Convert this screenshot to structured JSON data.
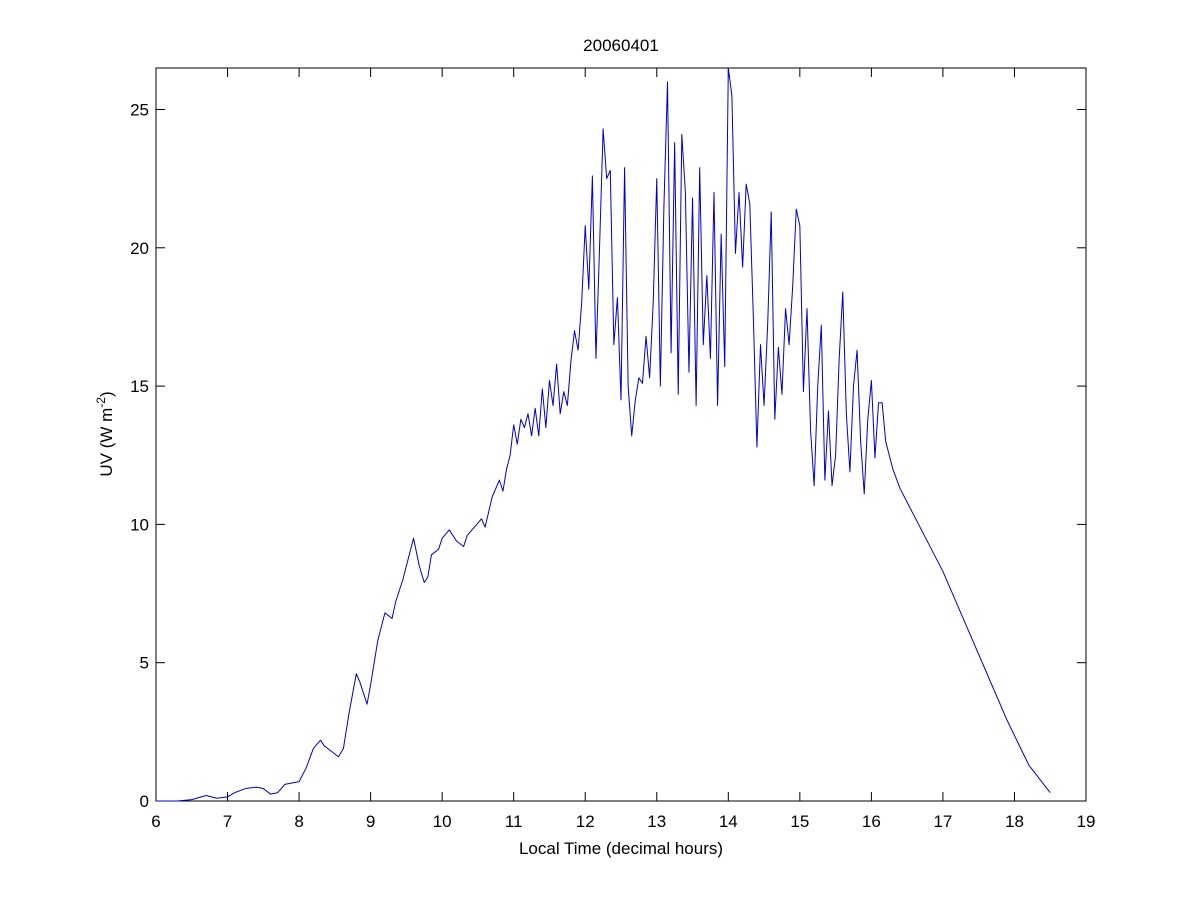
{
  "chart_data": {
    "type": "line",
    "title": "20060401",
    "xlabel": "Local Time (decimal hours)",
    "ylabel_main": "UV (W m",
    "ylabel_sup": "-2",
    "ylabel_close": ")",
    "xlim": [
      6,
      19
    ],
    "ylim": [
      0,
      26.5
    ],
    "xticks": [
      6,
      7,
      8,
      9,
      10,
      11,
      12,
      13,
      14,
      15,
      16,
      17,
      18,
      19
    ],
    "yticks": [
      0,
      5,
      10,
      15,
      20,
      25
    ],
    "grid": false,
    "line_color": "#0000CC",
    "series": [
      {
        "x": [
          6.0,
          6.3,
          6.5,
          6.7,
          6.85,
          7.0,
          7.1,
          7.25,
          7.4,
          7.5,
          7.6,
          7.7,
          7.8,
          7.9,
          8.0,
          8.1,
          8.2,
          8.3,
          8.35,
          8.45,
          8.55,
          8.62,
          8.7,
          8.8,
          8.85,
          8.95,
          9.0,
          9.1,
          9.2,
          9.3,
          9.35,
          9.45,
          9.55,
          9.6,
          9.68,
          9.75,
          9.8,
          9.85,
          9.95,
          10.0,
          10.1,
          10.2,
          10.3,
          10.35,
          10.45,
          10.55,
          10.6,
          10.7,
          10.8,
          10.85,
          10.9,
          10.95,
          11.0,
          11.05,
          11.1,
          11.15,
          11.2,
          11.25,
          11.3,
          11.35,
          11.4,
          11.45,
          11.5,
          11.55,
          11.6,
          11.65,
          11.7,
          11.75,
          11.8,
          11.85,
          11.9,
          11.95,
          12.0,
          12.05,
          12.1,
          12.15,
          12.2,
          12.25,
          12.3,
          12.35,
          12.4,
          12.45,
          12.5,
          12.55,
          12.6,
          12.65,
          12.7,
          12.75,
          12.8,
          12.85,
          12.9,
          12.95,
          13.0,
          13.05,
          13.1,
          13.15,
          13.2,
          13.25,
          13.3,
          13.35,
          13.4,
          13.45,
          13.5,
          13.55,
          13.6,
          13.65,
          13.7,
          13.75,
          13.8,
          13.85,
          13.9,
          13.95,
          14.0,
          14.05,
          14.1,
          14.15,
          14.2,
          14.25,
          14.3,
          14.35,
          14.4,
          14.45,
          14.5,
          14.55,
          14.6,
          14.65,
          14.7,
          14.75,
          14.8,
          14.85,
          14.9,
          14.95,
          15.0,
          15.05,
          15.1,
          15.15,
          15.2,
          15.25,
          15.3,
          15.35,
          15.4,
          15.45,
          15.5,
          15.55,
          15.6,
          15.65,
          15.7,
          15.75,
          15.8,
          15.85,
          15.9,
          15.95,
          16.0,
          16.05,
          16.1,
          16.15,
          16.2,
          16.3,
          16.4,
          16.5,
          16.7,
          17.0,
          17.3,
          17.6,
          17.9,
          18.2,
          18.5
        ],
        "y": [
          0.0,
          0.0,
          0.05,
          0.2,
          0.1,
          0.15,
          0.3,
          0.45,
          0.5,
          0.45,
          0.25,
          0.3,
          0.6,
          0.65,
          0.7,
          1.2,
          1.9,
          2.2,
          2.0,
          1.8,
          1.6,
          1.9,
          3.2,
          4.6,
          4.3,
          3.5,
          4.2,
          5.8,
          6.8,
          6.6,
          7.2,
          8.0,
          9.0,
          9.5,
          8.5,
          7.9,
          8.1,
          8.9,
          9.1,
          9.5,
          9.8,
          9.4,
          9.2,
          9.6,
          9.9,
          10.2,
          9.9,
          11.0,
          11.6,
          11.2,
          12.0,
          12.5,
          13.6,
          12.9,
          13.8,
          13.5,
          14.0,
          13.2,
          14.2,
          13.2,
          14.9,
          13.5,
          15.2,
          14.3,
          15.8,
          14.0,
          14.8,
          14.3,
          15.9,
          17.0,
          16.3,
          18.0,
          20.8,
          18.5,
          22.6,
          16.0,
          20.0,
          24.3,
          22.5,
          22.8,
          16.5,
          18.2,
          14.5,
          22.9,
          15.0,
          13.2,
          14.5,
          15.3,
          15.1,
          16.8,
          15.3,
          18.0,
          22.5,
          15.0,
          21.5,
          26.0,
          16.2,
          23.8,
          14.7,
          24.1,
          22.0,
          15.5,
          21.8,
          14.3,
          22.9,
          16.5,
          19.0,
          16.0,
          22.0,
          14.3,
          20.5,
          15.7,
          26.5,
          25.5,
          19.8,
          22.0,
          19.3,
          22.3,
          21.6,
          17.5,
          12.8,
          16.5,
          14.3,
          17.2,
          21.3,
          13.8,
          16.4,
          14.7,
          17.8,
          16.5,
          18.6,
          21.4,
          20.8,
          14.8,
          17.8,
          13.4,
          11.4,
          15.0,
          17.2,
          11.6,
          14.1,
          11.4,
          12.5,
          16.0,
          18.4,
          14.0,
          11.9,
          15.0,
          16.3,
          13.0,
          11.1,
          13.8,
          15.2,
          12.4,
          14.4,
          14.4,
          13.0,
          12.0,
          11.3,
          10.8,
          9.8,
          8.3,
          6.5,
          4.7,
          2.9,
          1.3,
          0.3
        ]
      }
    ]
  }
}
